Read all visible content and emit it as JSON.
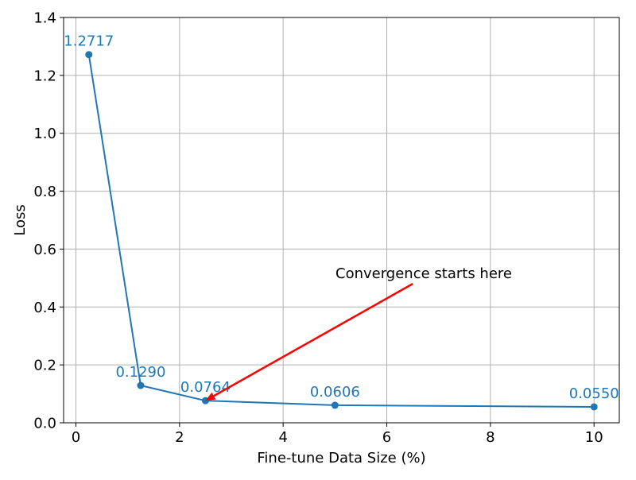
{
  "chart_data": {
    "type": "line",
    "title": "",
    "xlabel": "Fine-tune Data Size (%)",
    "ylabel": "Loss",
    "xlim": [
      -0.2375,
      10.4875
    ],
    "ylim": [
      0,
      1.4
    ],
    "x_ticks": [
      0,
      2,
      4,
      6,
      8,
      10
    ],
    "y_ticks": [
      0.0,
      0.2,
      0.4,
      0.6,
      0.8,
      1.0,
      1.2,
      1.4
    ],
    "x_tick_labels": [
      "0",
      "2",
      "4",
      "6",
      "8",
      "10"
    ],
    "y_tick_labels": [
      "0.0",
      "0.2",
      "0.4",
      "0.6",
      "0.8",
      "1.0",
      "1.2",
      "1.4"
    ],
    "grid": true,
    "series": [
      {
        "x": [
          0.25,
          1.25,
          2.5,
          5,
          10
        ],
        "y": [
          1.2717,
          0.129,
          0.0764,
          0.0606,
          0.055
        ],
        "labels": [
          "1.2717",
          "0.1290",
          "0.0764",
          "0.0606",
          "0.0550"
        ],
        "color": "#1f77b4"
      }
    ],
    "annotation": {
      "text": "Convergence starts here",
      "text_at": [
        6.5,
        0.48
      ],
      "arrow_to": [
        2.5,
        0.0764
      ],
      "color": "#ff0000"
    }
  }
}
